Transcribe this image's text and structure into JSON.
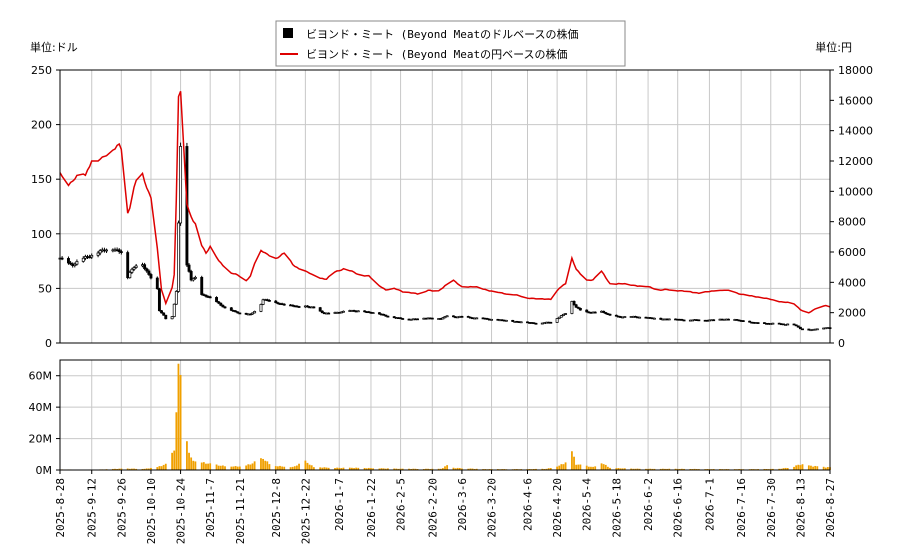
{
  "chart_data": {
    "type": "candlestick+line+bar",
    "legend": {
      "placement": "top-center",
      "entries": [
        {
          "label": "ビヨンド・ミート (Beyond Meatのドルベースの株価",
          "color": "#000000",
          "marker": "square"
        },
        {
          "label": "ビヨンド・ミート (Beyond Meatの円ベースの株価",
          "color": "#dd0000",
          "marker": "line"
        }
      ]
    },
    "left_axis_unit": "単位:ドル",
    "right_axis_unit": "単位:円",
    "left_axis": {
      "min": 0,
      "max": 250,
      "ticks": [
        0,
        50,
        100,
        150,
        200,
        250
      ]
    },
    "right_axis": {
      "min": 0,
      "max": 18000,
      "ticks": [
        0,
        2000,
        4000,
        6000,
        8000,
        10000,
        12000,
        14000,
        16000,
        18000
      ]
    },
    "volume_axis": {
      "min": 0,
      "max": 70000000,
      "ticks": [
        0,
        20000000,
        40000000,
        60000000
      ],
      "tick_labels": [
        "0M",
        "20M",
        "40M",
        "60M"
      ]
    },
    "x_axis": {
      "start": "2025-08-28",
      "end": "2026-08-27",
      "tick_labels": [
        "2025-8-28",
        "2025-9-12",
        "2025-9-26",
        "2025-10-10",
        "2025-10-24",
        "2025-11-7",
        "2025-11-21",
        "2025-12-8",
        "2025-12-22",
        "2026-1-7",
        "2026-1-22",
        "2026-2-5",
        "2026-2-20",
        "2026-3-6",
        "2026-3-20",
        "2026-4-6",
        "2026-4-20",
        "2026-5-4",
        "2026-5-18",
        "2026-6-2",
        "2026-6-16",
        "2026-7-1",
        "2026-7-16",
        "2026-7-30",
        "2026-8-13",
        "2026-8-27"
      ]
    },
    "grid": true,
    "colors": {
      "price": "#000000",
      "yen_line": "#dd0000",
      "volume": "#f0a000",
      "grid": "#c8c8c8"
    },
    "usd_keypoints": [
      [
        0,
        77
      ],
      [
        3,
        74
      ],
      [
        6,
        72
      ],
      [
        10,
        76
      ],
      [
        14,
        80
      ],
      [
        18,
        83
      ],
      [
        22,
        85
      ],
      [
        25,
        87
      ],
      [
        30,
        82
      ],
      [
        31,
        55
      ],
      [
        33,
        65
      ],
      [
        36,
        72
      ],
      [
        38,
        75
      ],
      [
        40,
        68
      ],
      [
        42,
        62
      ],
      [
        44,
        58
      ],
      [
        46,
        50
      ],
      [
        47,
        30
      ],
      [
        49,
        25
      ],
      [
        51,
        19
      ],
      [
        53,
        24
      ],
      [
        55,
        48
      ],
      [
        56,
        110
      ],
      [
        57,
        180
      ],
      [
        58,
        120
      ],
      [
        59,
        85
      ],
      [
        60,
        70
      ],
      [
        61,
        65
      ],
      [
        62,
        58
      ],
      [
        64,
        60
      ],
      [
        66,
        45
      ],
      [
        70,
        42
      ],
      [
        74,
        38
      ],
      [
        78,
        32
      ],
      [
        82,
        29
      ],
      [
        86,
        27
      ],
      [
        90,
        26
      ],
      [
        94,
        32
      ],
      [
        96,
        40
      ],
      [
        100,
        38
      ],
      [
        104,
        36
      ],
      [
        108,
        35
      ],
      [
        112,
        33
      ],
      [
        116,
        34
      ],
      [
        120,
        32
      ],
      [
        124,
        28
      ],
      [
        128,
        27
      ],
      [
        132,
        28
      ],
      [
        136,
        30
      ],
      [
        140,
        29
      ],
      [
        144,
        29
      ],
      [
        150,
        27
      ],
      [
        156,
        24
      ],
      [
        162,
        22
      ],
      [
        168,
        22
      ],
      [
        174,
        23
      ],
      [
        180,
        22
      ],
      [
        184,
        26
      ],
      [
        186,
        24
      ],
      [
        190,
        24
      ],
      [
        196,
        23
      ],
      [
        202,
        22
      ],
      [
        208,
        21
      ],
      [
        214,
        20
      ],
      [
        220,
        19
      ],
      [
        226,
        18
      ],
      [
        232,
        19
      ],
      [
        236,
        24
      ],
      [
        240,
        28
      ],
      [
        242,
        38
      ],
      [
        244,
        33
      ],
      [
        248,
        28
      ],
      [
        252,
        28
      ],
      [
        256,
        29
      ],
      [
        260,
        25
      ],
      [
        266,
        24
      ],
      [
        272,
        24
      ],
      [
        278,
        23
      ],
      [
        284,
        22
      ],
      [
        290,
        22
      ],
      [
        296,
        21
      ],
      [
        302,
        21
      ],
      [
        308,
        21
      ],
      [
        314,
        22
      ],
      [
        320,
        21
      ],
      [
        326,
        19
      ],
      [
        332,
        18
      ],
      [
        338,
        18
      ],
      [
        342,
        17
      ],
      [
        346,
        18
      ],
      [
        350,
        13
      ],
      [
        354,
        12
      ],
      [
        358,
        13
      ],
      [
        362,
        14
      ],
      [
        365,
        14
      ]
    ],
    "jpy_keypoints": [
      [
        0,
        11300
      ],
      [
        3,
        10400
      ],
      [
        6,
        10600
      ],
      [
        8,
        11000
      ],
      [
        10,
        11400
      ],
      [
        12,
        11100
      ],
      [
        14,
        11700
      ],
      [
        16,
        12400
      ],
      [
        18,
        12000
      ],
      [
        20,
        12200
      ],
      [
        22,
        12500
      ],
      [
        24,
        12700
      ],
      [
        26,
        12800
      ],
      [
        28,
        13000
      ],
      [
        30,
        12600
      ],
      [
        31,
        8200
      ],
      [
        33,
        9000
      ],
      [
        35,
        10200
      ],
      [
        37,
        11200
      ],
      [
        38,
        12300
      ],
      [
        39,
        11100
      ],
      [
        41,
        10300
      ],
      [
        43,
        9600
      ],
      [
        45,
        9100
      ],
      [
        46,
        6200
      ],
      [
        48,
        3500
      ],
      [
        50,
        2600
      ],
      [
        52,
        2800
      ],
      [
        54,
        4500
      ],
      [
        55,
        9500
      ],
      [
        56,
        16200
      ],
      [
        57,
        16400
      ],
      [
        58,
        12000
      ],
      [
        59,
        9600
      ],
      [
        61,
        8700
      ],
      [
        63,
        8100
      ],
      [
        65,
        7600
      ],
      [
        67,
        6400
      ],
      [
        69,
        5900
      ],
      [
        71,
        6400
      ],
      [
        73,
        6000
      ],
      [
        75,
        5400
      ],
      [
        77,
        5100
      ],
      [
        80,
        4700
      ],
      [
        84,
        4500
      ],
      [
        88,
        4100
      ],
      [
        90,
        4400
      ],
      [
        94,
        6200
      ],
      [
        98,
        5800
      ],
      [
        102,
        5600
      ],
      [
        106,
        5900
      ],
      [
        110,
        5200
      ],
      [
        114,
        4800
      ],
      [
        118,
        4600
      ],
      [
        122,
        4300
      ],
      [
        126,
        4200
      ],
      [
        130,
        4700
      ],
      [
        134,
        4900
      ],
      [
        138,
        4700
      ],
      [
        142,
        4500
      ],
      [
        146,
        4400
      ],
      [
        150,
        3900
      ],
      [
        154,
        3500
      ],
      [
        158,
        3600
      ],
      [
        162,
        3400
      ],
      [
        166,
        3300
      ],
      [
        170,
        3200
      ],
      [
        174,
        3500
      ],
      [
        178,
        3300
      ],
      [
        182,
        3800
      ],
      [
        186,
        4100
      ],
      [
        190,
        3700
      ],
      [
        196,
        3700
      ],
      [
        202,
        3500
      ],
      [
        208,
        3300
      ],
      [
        214,
        3200
      ],
      [
        220,
        3000
      ],
      [
        226,
        2900
      ],
      [
        232,
        2900
      ],
      [
        236,
        3600
      ],
      [
        240,
        4000
      ],
      [
        242,
        5600
      ],
      [
        244,
        4900
      ],
      [
        248,
        4100
      ],
      [
        252,
        4200
      ],
      [
        256,
        4700
      ],
      [
        260,
        3900
      ],
      [
        266,
        3900
      ],
      [
        272,
        3800
      ],
      [
        278,
        3700
      ],
      [
        284,
        3500
      ],
      [
        290,
        3500
      ],
      [
        296,
        3400
      ],
      [
        302,
        3300
      ],
      [
        308,
        3400
      ],
      [
        314,
        3500
      ],
      [
        320,
        3300
      ],
      [
        326,
        3100
      ],
      [
        332,
        3000
      ],
      [
        338,
        2800
      ],
      [
        342,
        2700
      ],
      [
        346,
        2700
      ],
      [
        350,
        2200
      ],
      [
        354,
        2000
      ],
      [
        358,
        2300
      ],
      [
        362,
        2500
      ],
      [
        365,
        2300
      ]
    ],
    "volume_keypoints": [
      [
        0,
        0.4
      ],
      [
        10,
        0.3
      ],
      [
        20,
        0.4
      ],
      [
        30,
        1.0
      ],
      [
        40,
        0.8
      ],
      [
        46,
        2.0
      ],
      [
        50,
        4.0
      ],
      [
        52,
        7.0
      ],
      [
        54,
        15.0
      ],
      [
        55,
        40.0
      ],
      [
        56,
        68.0
      ],
      [
        57,
        73.0
      ],
      [
        58,
        60.0
      ],
      [
        59,
        27.0
      ],
      [
        60,
        22.0
      ],
      [
        61,
        12.0
      ],
      [
        62,
        8.0
      ],
      [
        64,
        6.0
      ],
      [
        68,
        5.0
      ],
      [
        72,
        4.0
      ],
      [
        76,
        3.0
      ],
      [
        80,
        2.5
      ],
      [
        86,
        2.5
      ],
      [
        90,
        4.0
      ],
      [
        94,
        7.0
      ],
      [
        96,
        8.0
      ],
      [
        100,
        3.0
      ],
      [
        110,
        2.0
      ],
      [
        116,
        6.0
      ],
      [
        120,
        2.0
      ],
      [
        130,
        1.5
      ],
      [
        140,
        1.5
      ],
      [
        150,
        1.2
      ],
      [
        160,
        0.9
      ],
      [
        170,
        0.8
      ],
      [
        180,
        0.8
      ],
      [
        184,
        4.0
      ],
      [
        186,
        1.5
      ],
      [
        200,
        0.6
      ],
      [
        220,
        0.6
      ],
      [
        230,
        0.8
      ],
      [
        236,
        3.0
      ],
      [
        240,
        6.0
      ],
      [
        242,
        13.0
      ],
      [
        244,
        4.0
      ],
      [
        248,
        3.0
      ],
      [
        252,
        2.0
      ],
      [
        256,
        5.0
      ],
      [
        260,
        1.5
      ],
      [
        270,
        0.9
      ],
      [
        280,
        0.8
      ],
      [
        290,
        0.8
      ],
      [
        300,
        0.7
      ],
      [
        310,
        0.6
      ],
      [
        320,
        0.6
      ],
      [
        330,
        0.6
      ],
      [
        340,
        0.8
      ],
      [
        346,
        2.0
      ],
      [
        350,
        4.0
      ],
      [
        354,
        3.0
      ],
      [
        358,
        2.5
      ],
      [
        362,
        2.0
      ],
      [
        365,
        1.8
      ]
    ]
  }
}
